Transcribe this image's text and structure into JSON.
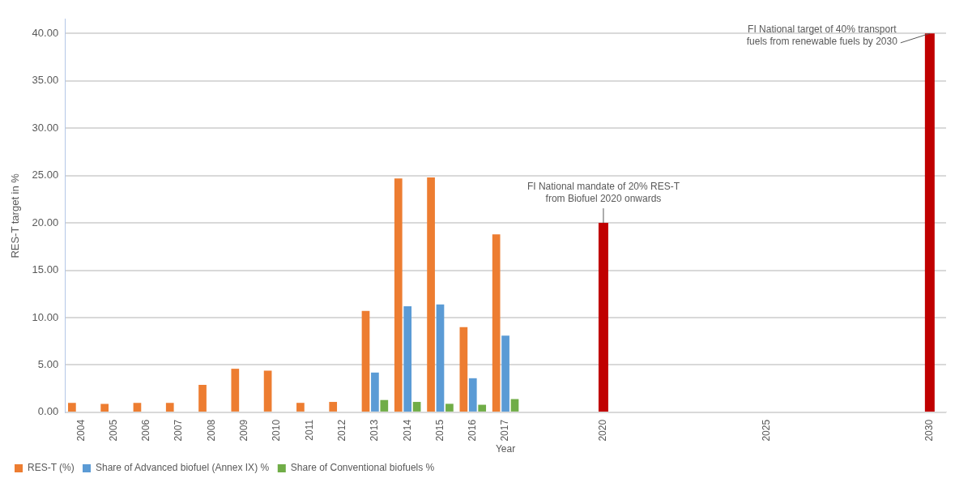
{
  "chart_data": {
    "type": "bar",
    "xlabel": "Year",
    "ylabel": "RES-T target in %",
    "categories": [
      "2004",
      "2005",
      "2006",
      "2007",
      "2008",
      "2009",
      "2010",
      "2011",
      "2012",
      "2013",
      "2014",
      "2015",
      "2016",
      "2017",
      null,
      null,
      "2020",
      null,
      null,
      null,
      null,
      "2025",
      null,
      null,
      null,
      null,
      "2030"
    ],
    "series": [
      {
        "name": "RES-T (%)",
        "color": "#ed7d31",
        "values": [
          1.0,
          0.9,
          1.0,
          1.0,
          2.9,
          4.6,
          4.4,
          1.0,
          1.1,
          10.7,
          24.7,
          24.8,
          9.0,
          18.8,
          null,
          null,
          null,
          null,
          null,
          null,
          null,
          null,
          null,
          null,
          null,
          null,
          null
        ]
      },
      {
        "name": "Share of Advanced biofuel (Annex IX) %",
        "color": "#5b9bd5",
        "values": [
          null,
          null,
          null,
          null,
          null,
          null,
          null,
          null,
          null,
          4.2,
          11.2,
          11.4,
          3.6,
          8.1,
          null,
          null,
          null,
          null,
          null,
          null,
          null,
          null,
          null,
          null,
          null,
          null,
          null
        ]
      },
      {
        "name": "Share of Conventional biofuels %",
        "color": "#70ad47",
        "values": [
          null,
          null,
          null,
          null,
          null,
          null,
          null,
          null,
          null,
          1.3,
          1.1,
          0.9,
          0.8,
          1.4,
          null,
          null,
          null,
          null,
          null,
          null,
          null,
          null,
          null,
          null,
          null,
          null,
          null
        ]
      },
      {
        "color": "#c00000",
        "values": [
          null,
          null,
          null,
          null,
          null,
          null,
          null,
          null,
          null,
          null,
          null,
          null,
          null,
          null,
          null,
          null,
          20,
          null,
          null,
          null,
          null,
          null,
          null,
          null,
          null,
          null,
          40
        ]
      }
    ],
    "ylim": [
      0,
      41.5
    ],
    "yticks": [
      {
        "value": 0,
        "label": "0.00"
      },
      {
        "value": 5,
        "label": "5.00"
      },
      {
        "value": 10,
        "label": "10.00"
      },
      {
        "value": 15,
        "label": "15.00"
      },
      {
        "value": 20,
        "label": "20.00"
      },
      {
        "value": 25,
        "label": "25.00"
      },
      {
        "value": 30,
        "label": "30.00"
      },
      {
        "value": 35,
        "label": "35.00"
      },
      {
        "value": 40,
        "label": "40.00"
      }
    ],
    "grid": "y",
    "legend": "bottom",
    "annotations": [
      {
        "text": "FI National mandate of 20% RES-T from Biofuel 2020 onwards",
        "x": "2020",
        "y": 20
      },
      {
        "text": "FI National target of 40% transport fuels from renewable fuels by 2030",
        "x": "2030",
        "y": 40
      }
    ]
  }
}
